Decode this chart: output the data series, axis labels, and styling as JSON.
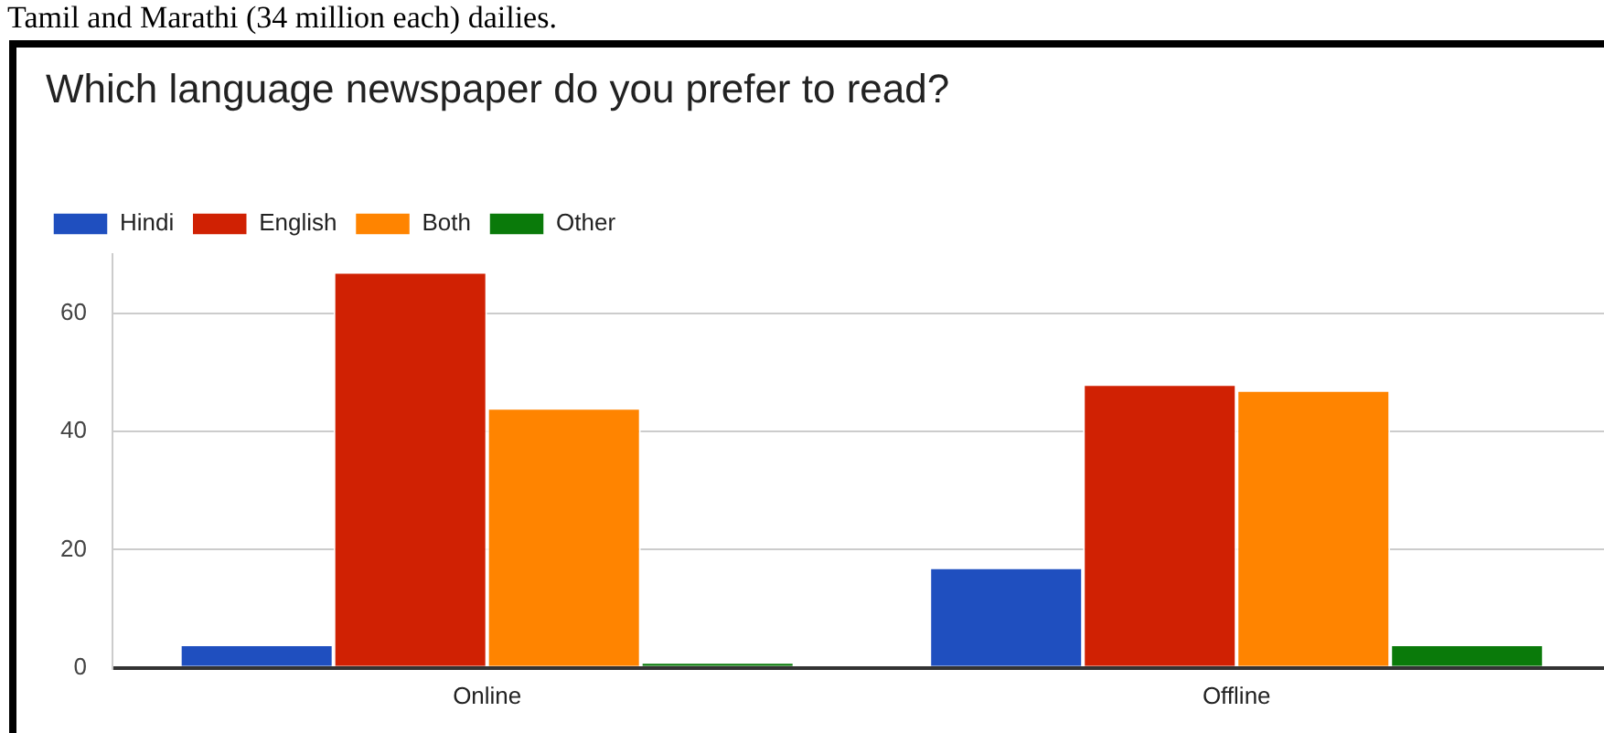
{
  "chart_data": {
    "type": "bar",
    "title": "Which language newspaper do you prefer to read?",
    "annotations": [
      "Tamil and Marathi (34 million each) dailies."
    ],
    "categories": [
      "Online",
      "Offline"
    ],
    "series": [
      {
        "name": "Hindi",
        "color": "#1f4fbf",
        "values": [
          4,
          17
        ]
      },
      {
        "name": "English",
        "color": "#d02103",
        "values": [
          67,
          48
        ]
      },
      {
        "name": "Both",
        "color": "#ff8400",
        "values": [
          44,
          47
        ]
      },
      {
        "name": "Other",
        "color": "#0a7a0a",
        "values": [
          1,
          4
        ]
      }
    ],
    "ylim": [
      0,
      70
    ],
    "yticks": [
      0,
      20,
      40,
      60
    ],
    "grid": "y",
    "legend": "top left"
  }
}
